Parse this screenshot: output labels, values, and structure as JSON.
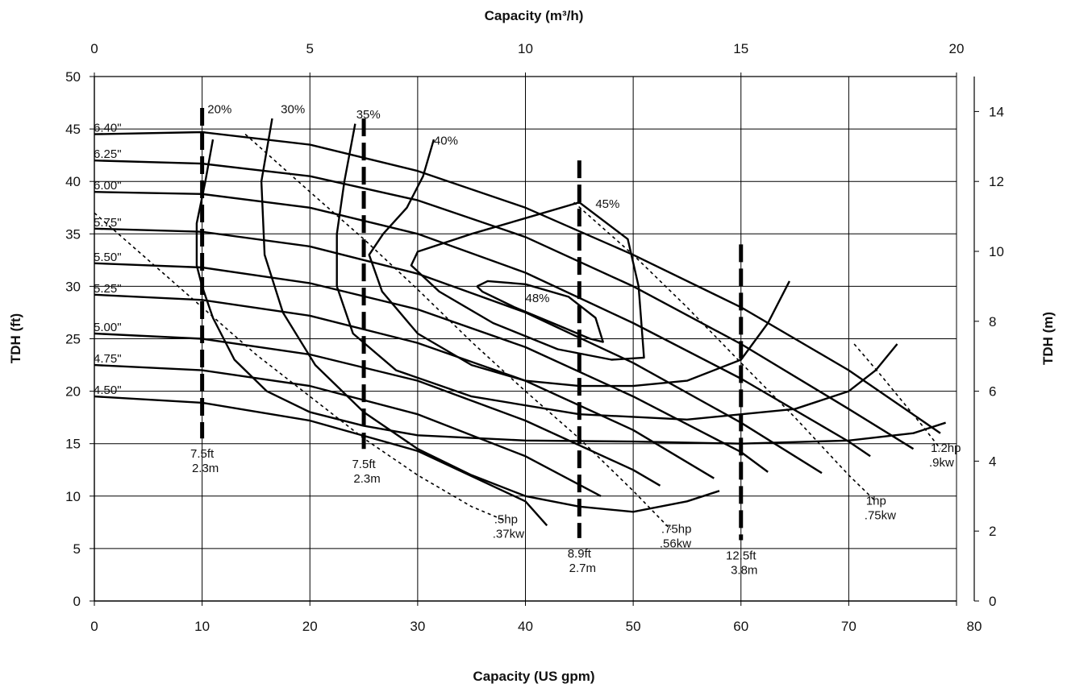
{
  "chart_data": {
    "type": "line",
    "title": "",
    "xlabel": "Capacity (US gpm)",
    "xlabel_top": "Capacity (m³/h)",
    "ylabel": "TDH (ft)",
    "ylabel_right": "TDH (m)",
    "xlim": [
      0,
      80
    ],
    "ylim": [
      0,
      50
    ],
    "x2lim": [
      0,
      20
    ],
    "y2lim": [
      0,
      15
    ],
    "x_ticks": [
      "0",
      "10",
      "20",
      "30",
      "40",
      "50",
      "60",
      "70",
      "80"
    ],
    "y_ticks": [
      "0",
      "5",
      "10",
      "15",
      "20",
      "25",
      "30",
      "35",
      "40",
      "45",
      "50"
    ],
    "x2_ticks": [
      "0",
      "5",
      "10",
      "15",
      "20"
    ],
    "y2_ticks": [
      "0",
      "2",
      "4",
      "6",
      "8",
      "10",
      "12",
      "14"
    ],
    "grid": true,
    "head_curves": [
      {
        "name": "6.40\"",
        "x": [
          0,
          10,
          20,
          30,
          40,
          50,
          60,
          70,
          78.5
        ],
        "y": [
          44.5,
          44.7,
          43.5,
          41,
          37.5,
          33,
          28,
          22,
          16
        ]
      },
      {
        "name": "6.25\"",
        "x": [
          0,
          10,
          20,
          30,
          40,
          50,
          60,
          70,
          76
        ],
        "y": [
          42,
          41.7,
          40.5,
          38.2,
          34.7,
          30,
          24.5,
          18.3,
          14.5
        ]
      },
      {
        "name": "6.00\"",
        "x": [
          0,
          10,
          20,
          30,
          40,
          50,
          60,
          70,
          72
        ],
        "y": [
          39,
          38.8,
          37.5,
          35,
          31.3,
          26.5,
          21.2,
          15.2,
          13.8
        ]
      },
      {
        "name": "5.75\"",
        "x": [
          0,
          10,
          20,
          30,
          40,
          50,
          60,
          67.5
        ],
        "y": [
          35.5,
          35.2,
          33.8,
          31.2,
          27.5,
          22.7,
          17,
          12.2
        ]
      },
      {
        "name": "5.50\"",
        "x": [
          0,
          10,
          20,
          30,
          40,
          50,
          60,
          62.5
        ],
        "y": [
          32.2,
          31.8,
          30.3,
          27.8,
          24.2,
          19.5,
          14.2,
          12.3
        ]
      },
      {
        "name": "5.25\"",
        "x": [
          0,
          10,
          20,
          30,
          40,
          50,
          57.5
        ],
        "y": [
          29.2,
          28.7,
          27.2,
          24.6,
          21,
          16.3,
          11.7
        ]
      },
      {
        "name": "5.00\"",
        "x": [
          0,
          10,
          20,
          30,
          40,
          50,
          52.5
        ],
        "y": [
          25.5,
          25,
          23.5,
          21,
          17.2,
          12.5,
          11
        ]
      },
      {
        "name": "4.75\"",
        "x": [
          0,
          10,
          20,
          30,
          40,
          47
        ],
        "y": [
          22.5,
          22,
          20.5,
          17.8,
          13.8,
          10
        ]
      },
      {
        "name": "4.50\"",
        "x": [
          0,
          10,
          20,
          30,
          40,
          42
        ],
        "y": [
          19.5,
          18.9,
          17.2,
          14.3,
          9.5,
          7.2
        ]
      }
    ],
    "efficiency_contours": [
      {
        "name": "20%",
        "label_x": 10.5,
        "label_y": 46.5,
        "x": [
          11,
          10.3,
          9.5,
          9.5,
          10,
          11,
          13,
          16,
          20,
          25,
          30,
          40,
          50,
          60,
          70,
          76,
          79
        ],
        "y": [
          44,
          40,
          36,
          32,
          30,
          27,
          23,
          20,
          18,
          16.7,
          15.8,
          15.3,
          15.2,
          15,
          15.3,
          16,
          17
        ]
      },
      {
        "name": "30%",
        "label_x": 17.3,
        "label_y": 46.5,
        "x": [
          16.5,
          15.5,
          15.8,
          17.5,
          20.5,
          25,
          30,
          35,
          40,
          45,
          50,
          55,
          58
        ],
        "y": [
          46,
          40,
          33,
          27.5,
          22.5,
          18,
          14.5,
          12,
          10,
          9,
          8.5,
          9.5,
          10.5
        ]
      },
      {
        "name": "35%",
        "label_x": 24.3,
        "label_y": 46,
        "x": [
          24.2,
          23.2,
          22.5,
          22.5,
          24,
          28,
          35,
          45,
          55,
          65,
          70,
          72.5,
          74.5
        ],
        "y": [
          45.5,
          40,
          35,
          30,
          25.5,
          22,
          19.5,
          17.8,
          17.3,
          18.3,
          20,
          22,
          24.5
        ]
      },
      {
        "name": "40%",
        "label_x": 31.5,
        "label_y": 43.5,
        "x": [
          31.5,
          30.5,
          29,
          26.8,
          25.5,
          26.7,
          30,
          35,
          40,
          45,
          50,
          55,
          60,
          62.5,
          64.5
        ],
        "y": [
          44,
          40.5,
          37.5,
          35,
          33,
          29.5,
          25.5,
          22.5,
          21,
          20.5,
          20.5,
          21,
          23,
          26.5,
          30.5
        ]
      },
      {
        "name": "45%",
        "label_x": 46.5,
        "label_y": 37.5,
        "x": [
          45,
          40,
          35,
          30,
          29.4,
          32,
          37,
          43,
          48,
          51,
          50.5,
          49.5,
          45
        ],
        "y": [
          38,
          36.5,
          35,
          33.3,
          32,
          29.5,
          26.5,
          24,
          23,
          23.2,
          30,
          34.5,
          38
        ]
      },
      {
        "name": "48%",
        "label_x": 40,
        "label_y": 28.5,
        "x": [
          35.5,
          36,
          39,
          43,
          46,
          47.2,
          46.5,
          44,
          40,
          36.5,
          35.5
        ],
        "y": [
          30,
          29.5,
          28,
          26.3,
          25,
          24.7,
          27,
          29,
          30.2,
          30.5,
          30
        ]
      }
    ],
    "power_curves": [
      {
        "name": ".5hp",
        "label2": ".37kw",
        "x": [
          0,
          5,
          10,
          15,
          20,
          25,
          30,
          35,
          38
        ],
        "y": [
          37,
          32.5,
          28,
          23.5,
          19.5,
          15.5,
          12,
          9,
          7.7
        ]
      },
      {
        "name": ".75hp",
        "label2": ".56kw",
        "x": [
          14,
          20,
          25,
          30,
          35,
          40,
          45,
          50,
          53.5
        ],
        "y": [
          44.5,
          39,
          34.5,
          29.7,
          24.7,
          20,
          15.5,
          10.5,
          6.8
        ]
      },
      {
        "name": "1hp",
        "label2": ".75kw",
        "x": [
          44.5,
          50,
          55,
          60,
          65,
          70,
          72.5
        ],
        "y": [
          38,
          33,
          28,
          22.7,
          17.5,
          12,
          9.5
        ]
      },
      {
        "name": "1.2hp",
        "label2": ".9kw",
        "x": [
          70.5,
          73,
          75,
          77,
          78.5
        ],
        "y": [
          24.5,
          21.5,
          19,
          16.5,
          14.5
        ]
      }
    ],
    "npsh_lines": [
      {
        "x": 10,
        "y_top": 47,
        "y_bottom": 15.5,
        "label1": "7.5ft",
        "label2": "2.3m"
      },
      {
        "x": 25,
        "y_top": 46,
        "y_bottom": 14.5,
        "label1": "7.5ft",
        "label2": "2.3m"
      },
      {
        "x": 45,
        "y_top": 42,
        "y_bottom": 6,
        "label1": "8.9ft",
        "label2": "2.7m"
      },
      {
        "x": 60,
        "y_top": 34,
        "y_bottom": 5.8,
        "label1": "12.5ft",
        "label2": "3.8m"
      }
    ]
  }
}
